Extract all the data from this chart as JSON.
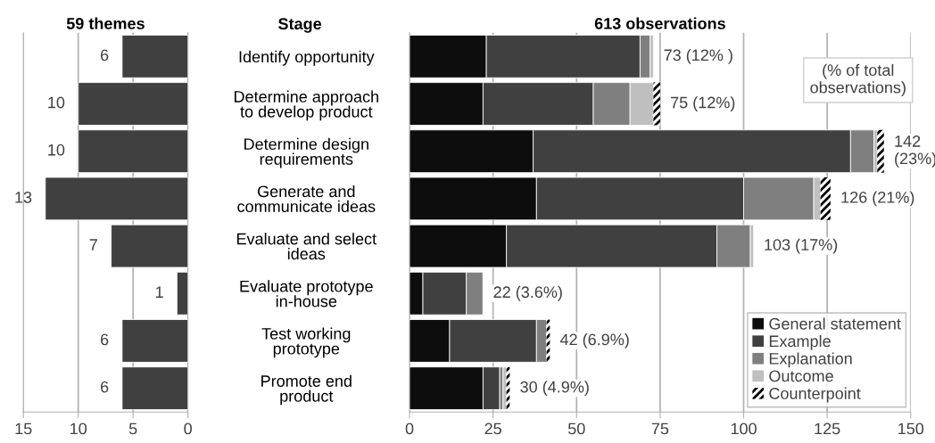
{
  "chart_data": [
    {
      "type": "bar",
      "orientation": "horizontal",
      "title": "59 themes",
      "annotations": [
        "Stage"
      ],
      "categories": [
        "Identify opportunity",
        "Determine approach\nto develop product",
        "Determine design\nrequirements",
        "Generate and\ncommunicate ideas",
        "Evaluate and select\nideas",
        "Evaluate prototype\nin-house",
        "Test working\nprototype",
        "Promote end\nproduct"
      ],
      "series": [
        {
          "color": "#404040",
          "values": [
            6,
            10,
            10,
            13,
            7,
            1,
            6,
            6
          ]
        }
      ],
      "data_labels": true,
      "xlim": [
        15,
        0
      ],
      "xticks": [
        15,
        10,
        5,
        0
      ],
      "grid": "x"
    },
    {
      "type": "bar",
      "orientation": "horizontal",
      "stacked": true,
      "title": "613 observations",
      "annotations": [
        "(% of total\nobservations)"
      ],
      "categories": [
        null,
        null,
        null,
        null,
        null,
        null,
        null,
        null
      ],
      "tick_labels": "x",
      "series": [
        {
          "name": "General statement",
          "color": "#0d0d0d",
          "values": [
            23,
            22,
            37,
            38,
            29,
            4,
            12,
            22
          ]
        },
        {
          "name": "Example",
          "color": "#404040",
          "values": [
            46,
            33,
            95,
            62,
            63,
            13,
            26,
            5
          ]
        },
        {
          "name": "Explanation",
          "color": "#7f7f7f",
          "values": [
            3,
            11,
            7,
            21,
            10,
            5,
            3,
            1
          ]
        },
        {
          "name": "Outcome",
          "color": "#bfbfbf",
          "values": [
            1,
            7,
            1,
            2,
            1,
            0,
            0,
            1
          ]
        },
        {
          "name": "Counterpoint",
          "color": "#ffffff",
          "values": [
            0,
            2,
            2,
            3,
            0,
            0,
            1,
            1
          ]
        }
      ],
      "totals": [
        "73 (12% )",
        "75 (12%)",
        "142\n(23%)",
        "126 (21%)",
        "103 (17%)",
        "22 (3.6%)",
        "42 (6.9%)",
        "30 (4.9%)"
      ],
      "xlim": [
        0,
        150
      ],
      "xticks": [
        0,
        25,
        50,
        75,
        100,
        125,
        150
      ],
      "grid": "x",
      "legend": "bottom right"
    }
  ]
}
